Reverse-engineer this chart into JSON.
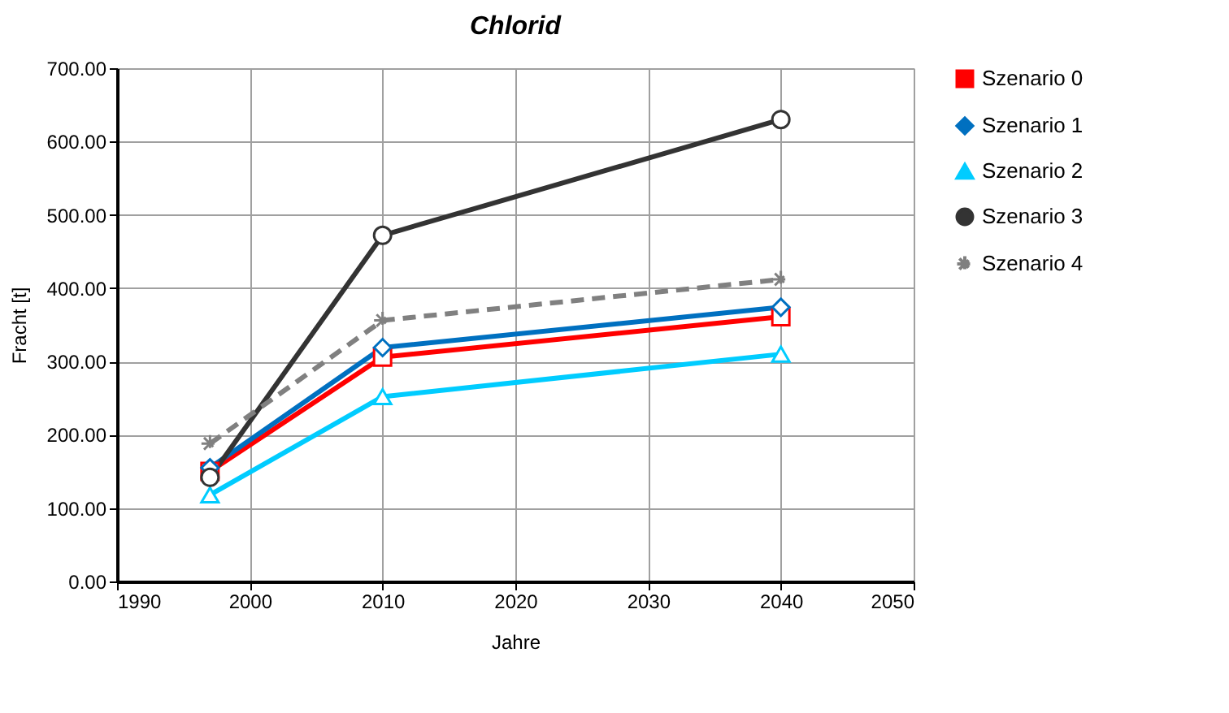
{
  "chart_data": {
    "type": "line",
    "title": "Chlorid",
    "xlabel": "Jahre",
    "ylabel": "Fracht [t]",
    "xlim": [
      1990,
      2050
    ],
    "xticks": [
      1990,
      2000,
      2010,
      2020,
      2030,
      2040,
      2050
    ],
    "ylim": [
      0,
      700
    ],
    "yticks": [
      {
        "value": 0,
        "label": "0.00"
      },
      {
        "value": 100,
        "label": "100.00"
      },
      {
        "value": 200,
        "label": "200.00"
      },
      {
        "value": 300,
        "label": "300.00"
      },
      {
        "value": 400,
        "label": "400.00"
      },
      {
        "value": 500,
        "label": "500.00"
      },
      {
        "value": 600,
        "label": "600.00"
      },
      {
        "value": 700,
        "label": "700.00"
      }
    ],
    "x": [
      1997,
      2010,
      2040
    ],
    "grid": true,
    "legend": "right",
    "series": [
      {
        "name": "Szenario 0",
        "color": "#ff0000",
        "marker": "square",
        "line_style": "solid",
        "values": [
          150,
          306,
          361
        ]
      },
      {
        "name": "Szenario 1",
        "color": "#0070c0",
        "marker": "diamond",
        "line_style": "solid",
        "values": [
          155,
          319,
          374
        ]
      },
      {
        "name": "Szenario 2",
        "color": "#00ccff",
        "marker": "triangle",
        "line_style": "solid",
        "values": [
          118,
          252,
          310
        ]
      },
      {
        "name": "Szenario 3",
        "color": "#333333",
        "marker": "circle",
        "line_style": "solid",
        "values": [
          142,
          472,
          630
        ]
      },
      {
        "name": "Szenario 4",
        "color": "#808080",
        "marker": "cross",
        "line_style": "dashed",
        "values": [
          188,
          356,
          412
        ]
      }
    ]
  }
}
